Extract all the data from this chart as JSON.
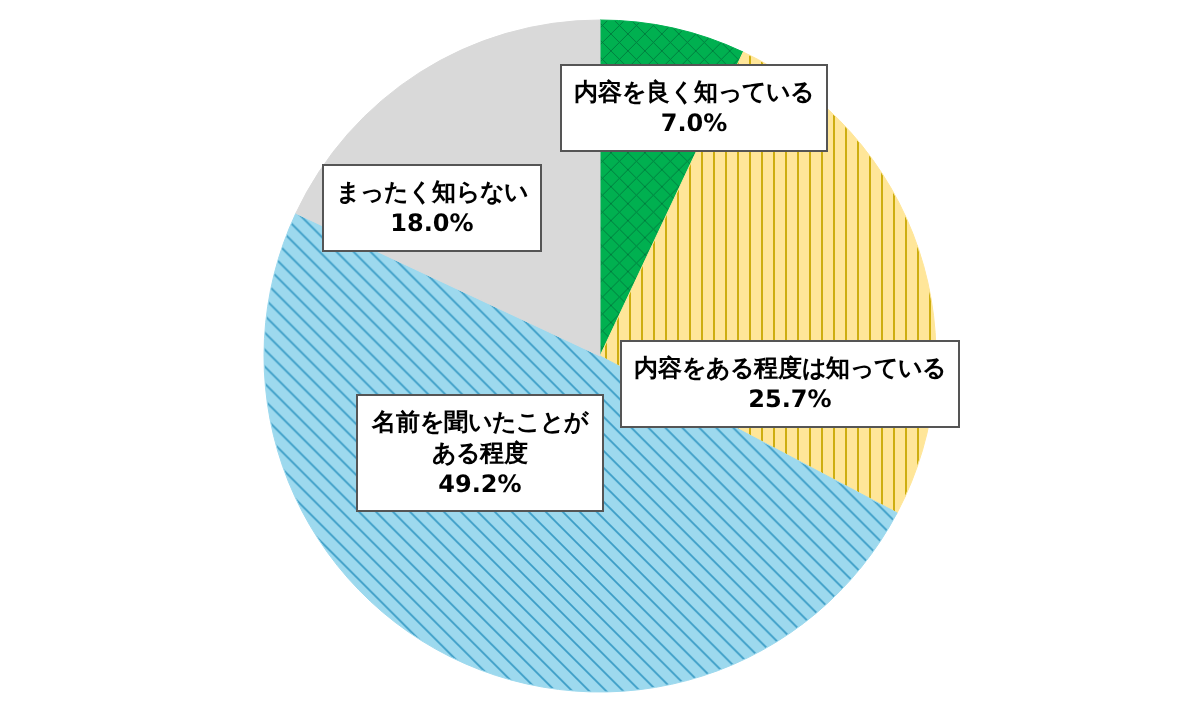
{
  "chart_data": {
    "type": "pie",
    "categories": [
      "内容を良く知っている",
      "内容をある程度は知っている",
      "名前を聞いたことがある程度",
      "まったく知らない"
    ],
    "values": [
      7.0,
      25.7,
      49.2,
      18.0
    ],
    "value_labels": [
      "7.0%",
      "25.7%",
      "49.2%",
      "18.0%"
    ],
    "colors": [
      "#00b050",
      "#ffe699",
      "#9dd9ee",
      "#d9d9d9"
    ],
    "legend": false
  }
}
